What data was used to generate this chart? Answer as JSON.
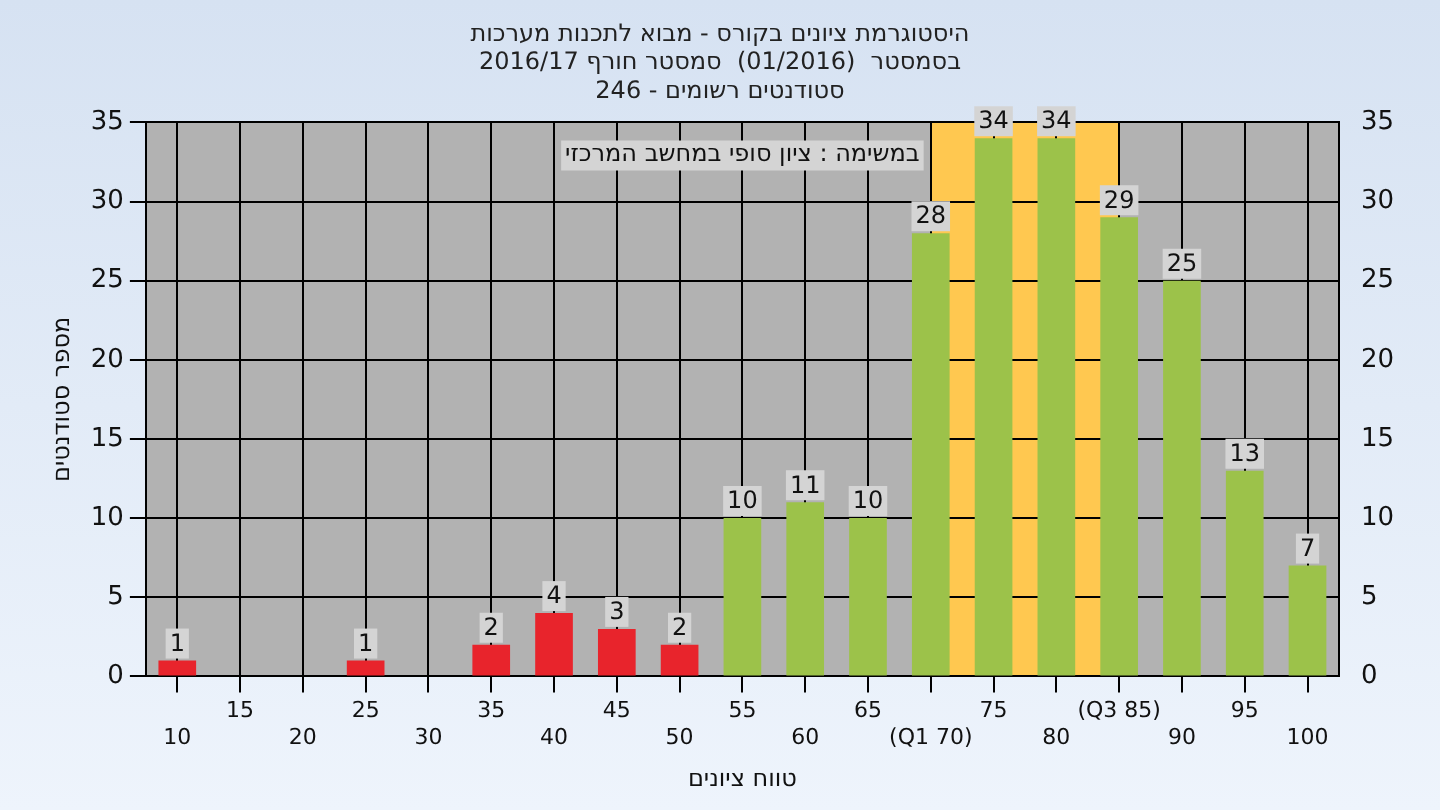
{
  "chart_data": {
    "type": "bar",
    "title": "היסטוגרמת ציונים בקורס - מבוא לתכנות מערכות\nבסמסטר  (01/2016)  סמסטר חורף 2016/17\nסטודנטים רשומים - 246",
    "xlabel": "טווח ציונים",
    "ylabel": "מספר סטודנטים",
    "annotations": [
      "במשימה : ציון סופי במחשב המרכזי"
    ],
    "categories": [
      "10",
      "15",
      "20",
      "25",
      "30",
      "35",
      "40",
      "45",
      "50",
      "55",
      "60",
      "65",
      "(Q1 70)",
      "75",
      "80",
      "(Q3 85)",
      "90",
      "95",
      "100"
    ],
    "values": [
      1,
      null,
      null,
      1,
      null,
      2,
      4,
      3,
      2,
      10,
      11,
      10,
      28,
      34,
      34,
      29,
      25,
      13,
      7
    ],
    "colors": [
      "#e8242c",
      "#e8242c",
      "#e8242c",
      "#e8242c",
      "#e8242c",
      "#e8242c",
      "#e8242c",
      "#e8242c",
      "#e8242c",
      "#9cc24a",
      "#9cc24a",
      "#9cc24a",
      "#9cc24a",
      "#9cc24a",
      "#9cc24a",
      "#9cc24a",
      "#9cc24a",
      "#9cc24a",
      "#9cc24a"
    ],
    "bands": [
      {
        "axis": "x",
        "from": "(Q1 70)",
        "to": "(Q3 85)",
        "color": "#ffc850"
      }
    ],
    "ylim": [
      0,
      35
    ],
    "yticks": [
      0,
      5,
      10,
      15,
      20,
      25,
      30,
      35
    ],
    "y2lim": [
      0,
      35
    ],
    "y2ticks": [
      0,
      5,
      10,
      15,
      20,
      25,
      30,
      35
    ],
    "grid": true,
    "legend": false,
    "data_labels": true
  }
}
